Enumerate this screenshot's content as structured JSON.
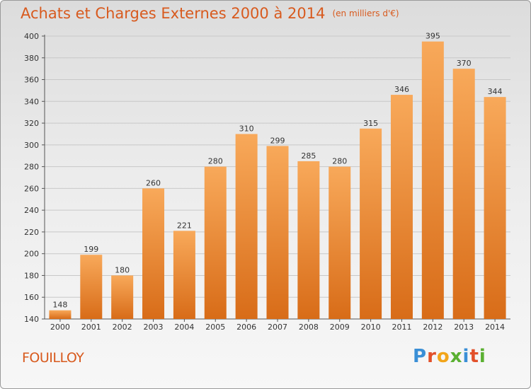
{
  "title": "Achats et Charges Externes 2000 à 2014",
  "unit_note": "(en milliers d'€)",
  "commune": "FOUILLOY",
  "logo": {
    "letters": [
      "P",
      "r",
      "o",
      "x",
      "i",
      "t",
      "i"
    ],
    "colors": [
      "#3a8fd6",
      "#e2502a",
      "#f2a51a",
      "#5ab031",
      "#3a8fd6",
      "#e2502a",
      "#5ab031"
    ]
  },
  "colors": {
    "title": "#d85a1e",
    "bar_light": "#f8a95a",
    "bar_dark": "#d86c18"
  },
  "chart_data": {
    "type": "bar",
    "title": "Achats et Charges Externes 2000 à 2014",
    "xlabel": "",
    "ylabel": "",
    "categories": [
      "2000",
      "2001",
      "2002",
      "2003",
      "2004",
      "2005",
      "2006",
      "2007",
      "2008",
      "2009",
      "2010",
      "2011",
      "2012",
      "2013",
      "2014"
    ],
    "values": [
      148,
      199,
      180,
      260,
      221,
      280,
      310,
      299,
      285,
      280,
      315,
      346,
      395,
      370,
      344
    ],
    "ylim": [
      140,
      400
    ],
    "yticks": [
      140,
      160,
      180,
      200,
      220,
      240,
      260,
      280,
      300,
      320,
      340,
      360,
      380,
      400
    ],
    "grid": "horizontal",
    "data_labels": true
  }
}
